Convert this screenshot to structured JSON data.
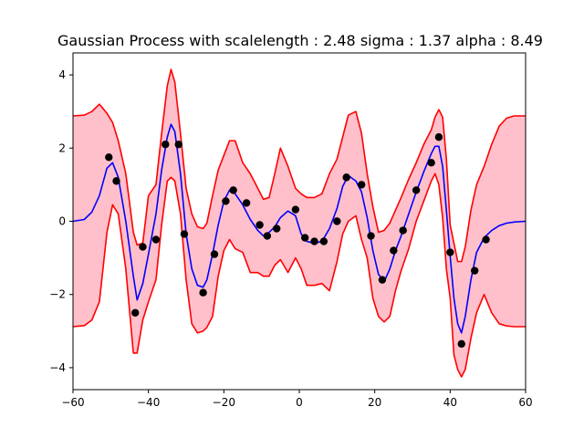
{
  "chart_data": {
    "type": "line",
    "title": "Gaussian Process with scalelength : 2.48 sigma : 1.37 alpha : 8.49",
    "xlim": [
      -60,
      60
    ],
    "ylim": [
      -4.6,
      4.6
    ],
    "xticks": [
      -60,
      -40,
      -20,
      0,
      20,
      40,
      60
    ],
    "yticks": [
      -4,
      -2,
      0,
      2,
      4
    ],
    "grid": false,
    "colors": {
      "band_fill": "#ffc0cb",
      "band_edge": "#ff0000",
      "mean": "#0000ff",
      "points": "#000000"
    },
    "observations": {
      "x": [
        -50.5,
        -48.5,
        -43.5,
        -41.5,
        -38.0,
        -35.5,
        -32.0,
        -30.5,
        -25.5,
        -22.5,
        -19.5,
        -17.5,
        -14.0,
        -10.5,
        -8.5,
        -6.0,
        -1.0,
        1.5,
        4.0,
        6.5,
        10.0,
        12.5,
        16.5,
        19.0,
        22.0,
        25.0,
        27.5,
        31.0,
        35.0,
        37.0,
        40.0,
        43.0,
        46.5,
        49.5
      ],
      "y": [
        1.75,
        1.1,
        -2.5,
        -0.7,
        -0.5,
        2.1,
        2.1,
        -0.35,
        -1.95,
        -0.9,
        0.55,
        0.85,
        0.5,
        -0.1,
        -0.4,
        -0.2,
        0.32,
        -0.45,
        -0.55,
        -0.55,
        0.0,
        1.2,
        1.0,
        -0.4,
        -1.6,
        -0.8,
        -0.25,
        0.85,
        1.6,
        2.3,
        -0.85,
        -3.35,
        -1.35,
        -0.5
      ]
    },
    "series": [
      {
        "role": "mean",
        "x": [
          -60,
          -57,
          -55,
          -53,
          -51,
          -49.5,
          -48,
          -46,
          -44,
          -43,
          -41.5,
          -40,
          -38,
          -36.5,
          -35,
          -34,
          -33,
          -31.5,
          -30,
          -28.5,
          -27,
          -25.5,
          -24.5,
          -23,
          -21.5,
          -20,
          -18.5,
          -17,
          -15,
          -13,
          -11,
          -9.5,
          -8,
          -6.5,
          -5,
          -3,
          -1,
          0.5,
          2,
          4,
          6,
          8,
          10,
          11.5,
          13,
          15,
          16.5,
          18,
          19.5,
          21,
          22.5,
          24,
          25.5,
          27,
          29,
          31,
          33,
          35,
          36,
          37,
          38,
          39,
          40,
          41,
          42,
          43,
          44,
          45.5,
          47,
          49,
          51,
          53,
          55,
          57,
          60
        ],
        "y": [
          0.0,
          0.05,
          0.25,
          0.7,
          1.45,
          1.6,
          1.2,
          0.0,
          -1.5,
          -2.15,
          -1.7,
          -0.9,
          0.2,
          1.4,
          2.3,
          2.65,
          2.45,
          1.3,
          -0.35,
          -1.3,
          -1.75,
          -1.8,
          -1.6,
          -0.9,
          -0.1,
          0.55,
          0.85,
          0.75,
          0.45,
          0.05,
          -0.25,
          -0.4,
          -0.3,
          -0.15,
          0.1,
          0.28,
          0.15,
          -0.35,
          -0.55,
          -0.6,
          -0.55,
          -0.2,
          0.35,
          0.95,
          1.25,
          1.1,
          0.8,
          0.1,
          -0.8,
          -1.45,
          -1.65,
          -1.3,
          -0.8,
          -0.4,
          0.2,
          0.8,
          1.35,
          1.85,
          2.05,
          2.05,
          1.5,
          0.3,
          -0.95,
          -2.1,
          -2.8,
          -3.05,
          -2.6,
          -1.6,
          -0.85,
          -0.45,
          -0.25,
          -0.12,
          -0.05,
          -0.02,
          0.0
        ]
      },
      {
        "role": "upper",
        "x": [
          -60,
          -57,
          -55,
          -53,
          -51,
          -49.5,
          -48,
          -46,
          -44,
          -43,
          -41.5,
          -40,
          -38,
          -36.5,
          -35,
          -34,
          -33,
          -31.5,
          -30,
          -28.5,
          -27,
          -25.5,
          -24.5,
          -23,
          -21.5,
          -20,
          -18.5,
          -17,
          -15,
          -13,
          -11,
          -9.5,
          -8,
          -6.5,
          -5,
          -3,
          -1,
          0.5,
          2,
          4,
          6,
          8,
          10,
          11.5,
          13,
          15,
          16.5,
          18,
          19.5,
          21,
          22.5,
          24,
          25.5,
          27,
          29,
          31,
          33,
          35,
          36,
          37,
          38,
          39,
          40,
          41,
          42,
          43,
          44,
          45.5,
          47,
          49,
          51,
          53,
          55,
          57,
          60
        ],
        "y": [
          2.88,
          2.9,
          3.0,
          3.2,
          2.95,
          2.7,
          2.2,
          1.3,
          -0.3,
          -0.65,
          -0.6,
          0.7,
          1.0,
          2.4,
          3.7,
          4.15,
          3.8,
          2.4,
          0.9,
          0.2,
          -0.15,
          -0.2,
          -0.05,
          0.7,
          1.4,
          1.8,
          2.2,
          2.2,
          1.6,
          1.3,
          0.9,
          0.6,
          0.65,
          1.3,
          2.0,
          1.5,
          0.9,
          0.75,
          0.65,
          0.65,
          0.75,
          1.3,
          1.7,
          2.3,
          2.9,
          3.0,
          2.4,
          1.3,
          0.4,
          -0.3,
          -0.25,
          -0.05,
          0.3,
          0.65,
          1.15,
          1.6,
          2.1,
          2.5,
          2.85,
          3.05,
          2.85,
          1.7,
          -0.1,
          -0.6,
          -1.1,
          -1.1,
          -0.7,
          0.3,
          1.0,
          1.5,
          2.1,
          2.6,
          2.82,
          2.88,
          2.88
        ]
      },
      {
        "role": "lower",
        "x": [
          -60,
          -57,
          -55,
          -53,
          -51,
          -49.5,
          -48,
          -46,
          -44,
          -43,
          -41.5,
          -40,
          -38,
          -36.5,
          -35,
          -34,
          -33,
          -31.5,
          -30,
          -28.5,
          -27,
          -25.5,
          -24.5,
          -23,
          -21.5,
          -20,
          -18.5,
          -17,
          -15,
          -13,
          -11,
          -9.5,
          -8,
          -6.5,
          -5,
          -3,
          -1,
          0.5,
          2,
          4,
          6,
          8,
          10,
          11.5,
          13,
          15,
          16.5,
          18,
          19.5,
          21,
          22.5,
          24,
          25.5,
          27,
          29,
          31,
          33,
          35,
          36,
          37,
          38,
          39,
          40,
          41,
          42,
          43,
          44,
          45.5,
          47,
          49,
          51,
          53,
          55,
          57,
          60
        ],
        "y": [
          -2.88,
          -2.85,
          -2.7,
          -2.2,
          -0.3,
          0.45,
          0.2,
          -1.3,
          -3.6,
          -3.6,
          -2.7,
          -2.2,
          -1.6,
          -0.1,
          1.1,
          1.2,
          1.1,
          0.2,
          -1.6,
          -2.8,
          -3.05,
          -3.0,
          -2.9,
          -2.6,
          -1.5,
          -0.8,
          -0.5,
          -0.75,
          -0.85,
          -1.4,
          -1.4,
          -1.5,
          -1.5,
          -1.2,
          -1.05,
          -1.4,
          -1.0,
          -1.3,
          -1.75,
          -1.75,
          -1.7,
          -1.9,
          -1.1,
          -0.35,
          0.0,
          0.15,
          -0.5,
          -1.0,
          -2.1,
          -2.6,
          -2.75,
          -2.6,
          -1.9,
          -1.35,
          -0.75,
          0.0,
          0.55,
          1.1,
          1.3,
          1.0,
          0.1,
          -1.3,
          -2.1,
          -3.65,
          -4.05,
          -4.25,
          -4.05,
          -3.2,
          -2.5,
          -2.0,
          -2.5,
          -2.8,
          -2.86,
          -2.88,
          -2.88
        ]
      }
    ]
  }
}
